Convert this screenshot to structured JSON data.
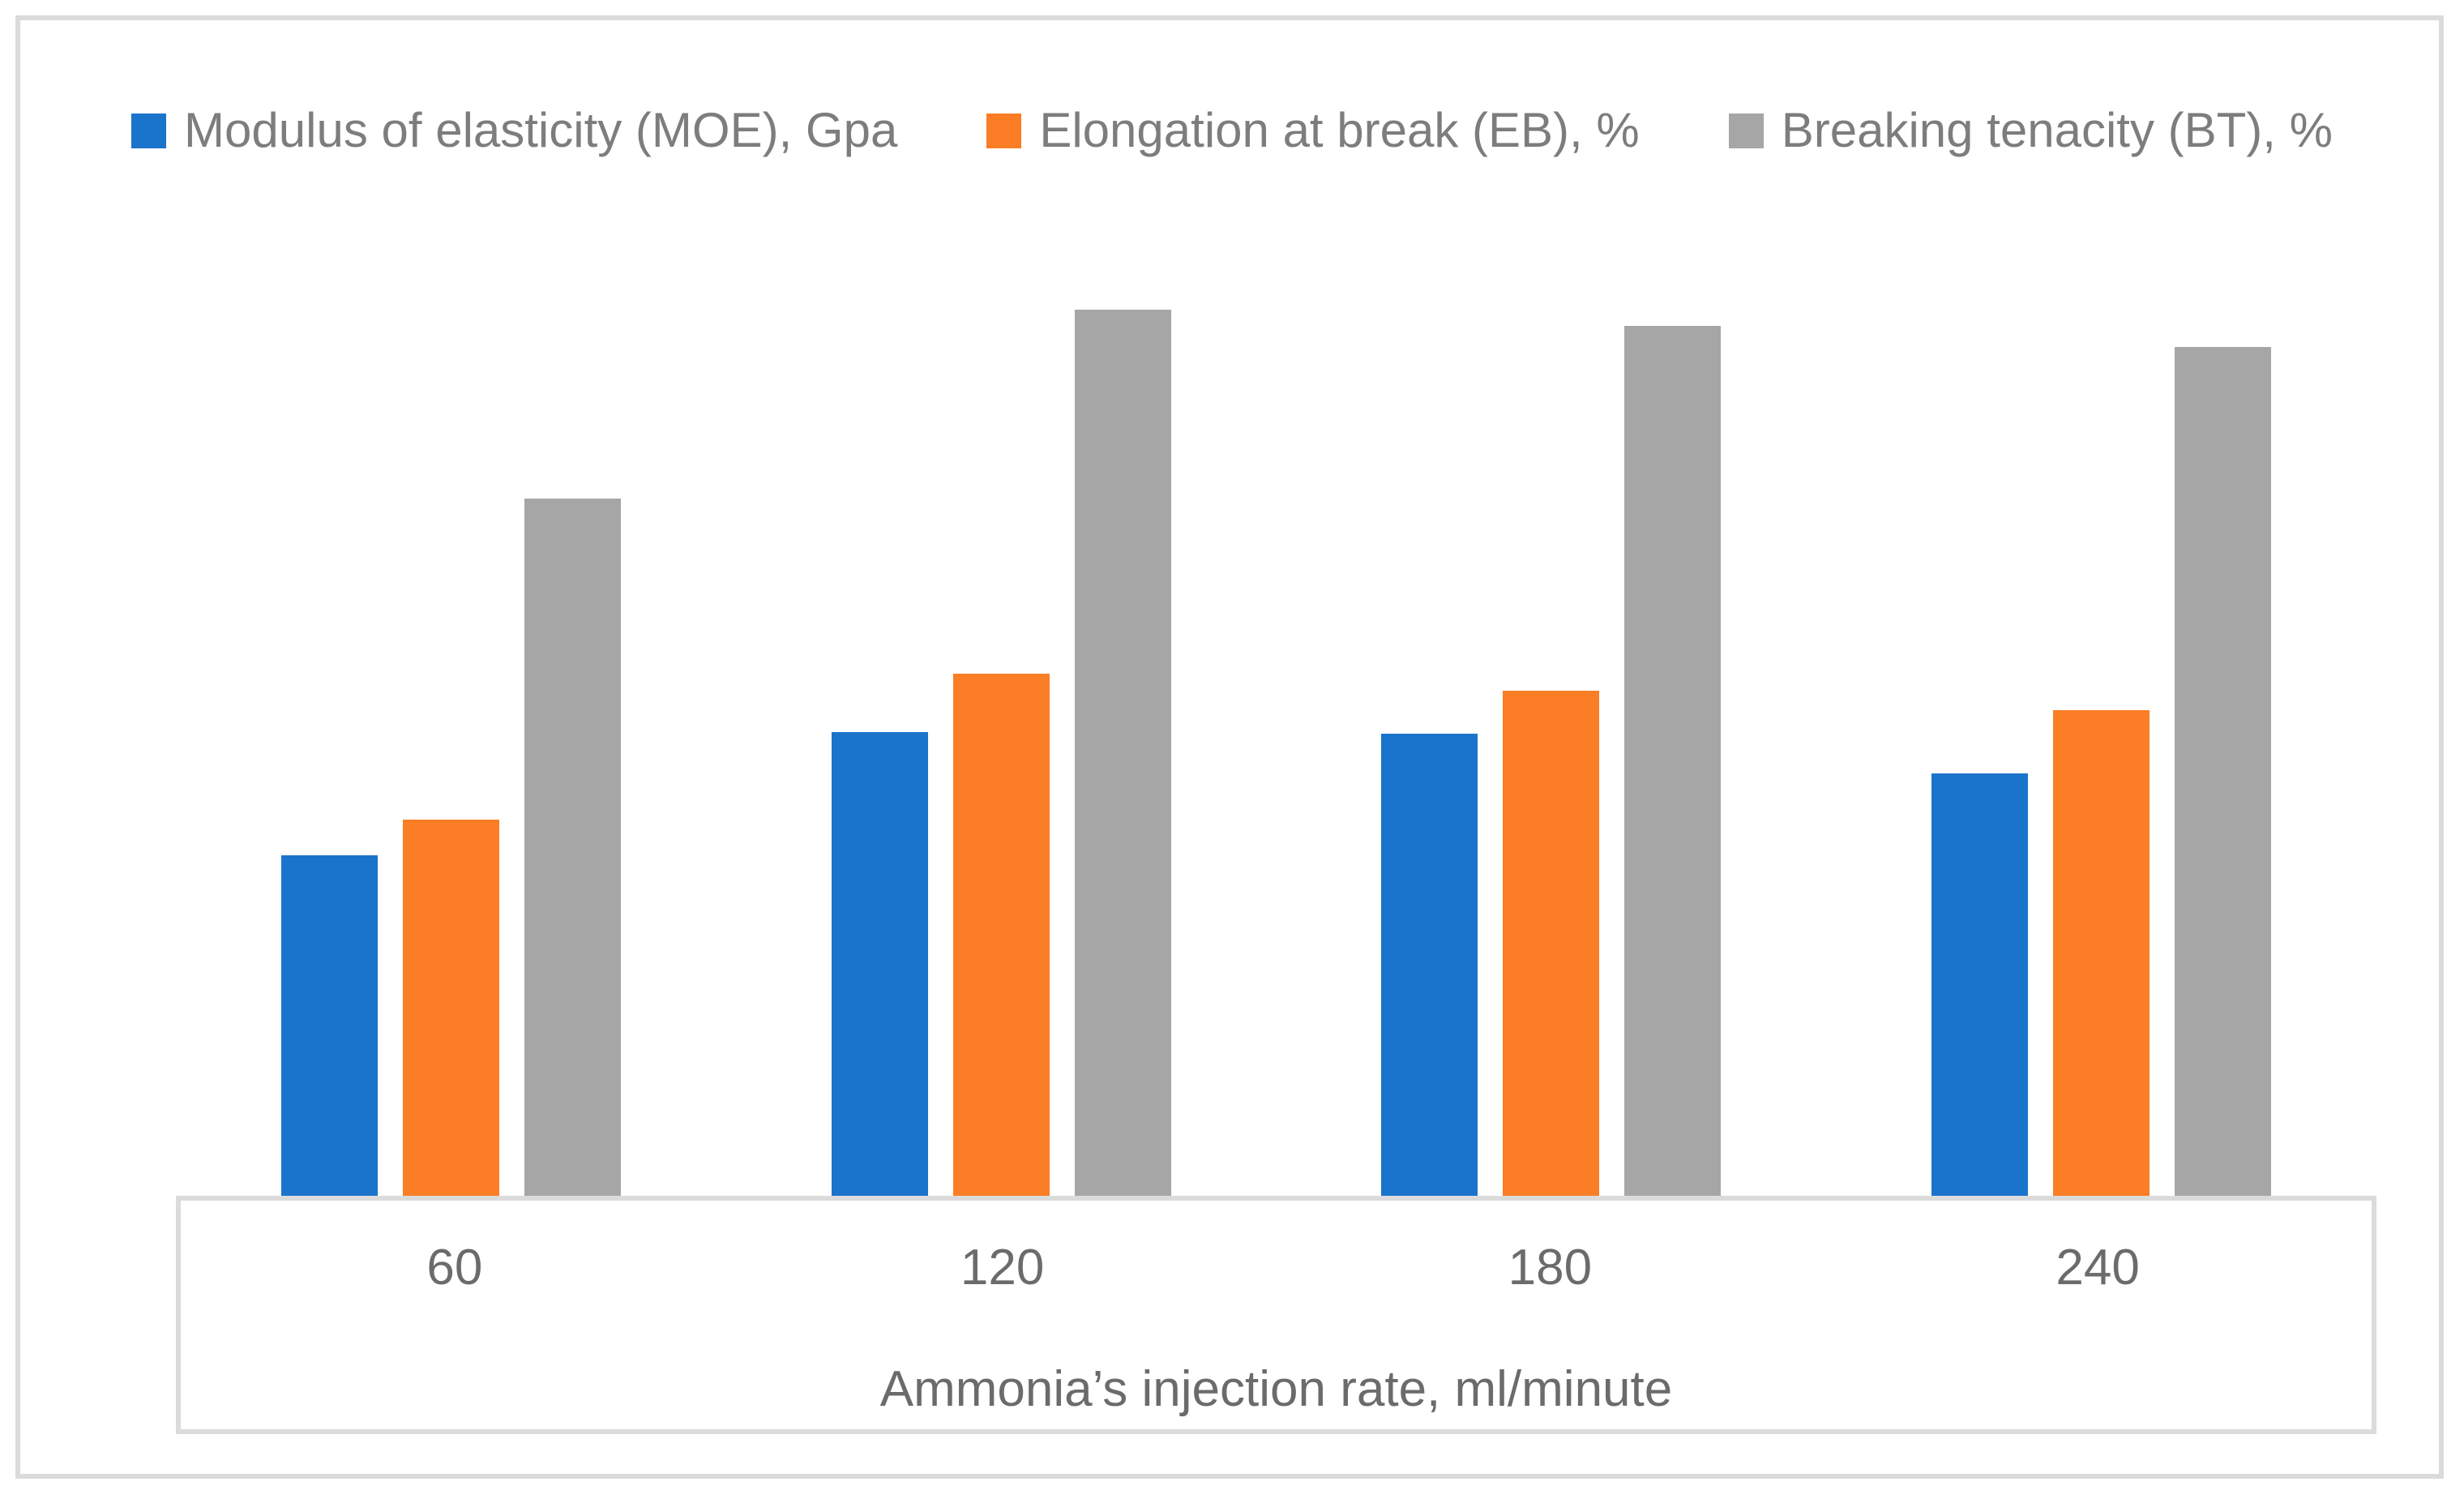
{
  "colors": {
    "frame_border": "#dbdbdb",
    "legend_text": "#7d7d7d",
    "axis_text": "#6b6b6b",
    "series_blue": "#1b74cb",
    "series_orange": "#fb7d25",
    "series_gray": "#a6a6a6",
    "background": "#ffffff"
  },
  "chart_data": {
    "type": "bar",
    "title": "",
    "xlabel": "Ammonia’s injection rate, ml/minute",
    "ylabel": "",
    "categories": [
      "60",
      "120",
      "180",
      "240"
    ],
    "series": [
      {
        "name": "Modulus of elasticity (MOE), Gpa",
        "color": "#1b74cb",
        "values": [
          38.5,
          52.4,
          52.2,
          47.8
        ]
      },
      {
        "name": "Elongation at break (EB), %",
        "color": "#fb7d25",
        "values": [
          42.6,
          59.0,
          57.1,
          54.9
        ]
      },
      {
        "name": "Breaking tenacity (BT), %",
        "color": "#a6a6a6",
        "values": [
          78.7,
          100.0,
          98.2,
          95.8
        ]
      }
    ],
    "ylim": [
      0,
      114
    ],
    "y_axis_visible": false,
    "gridlines": false,
    "legend_position": "top",
    "note": "No y-axis scale shown in the image; values are relative bar heights normalized so the tallest bar (BT at 120) = 100."
  }
}
